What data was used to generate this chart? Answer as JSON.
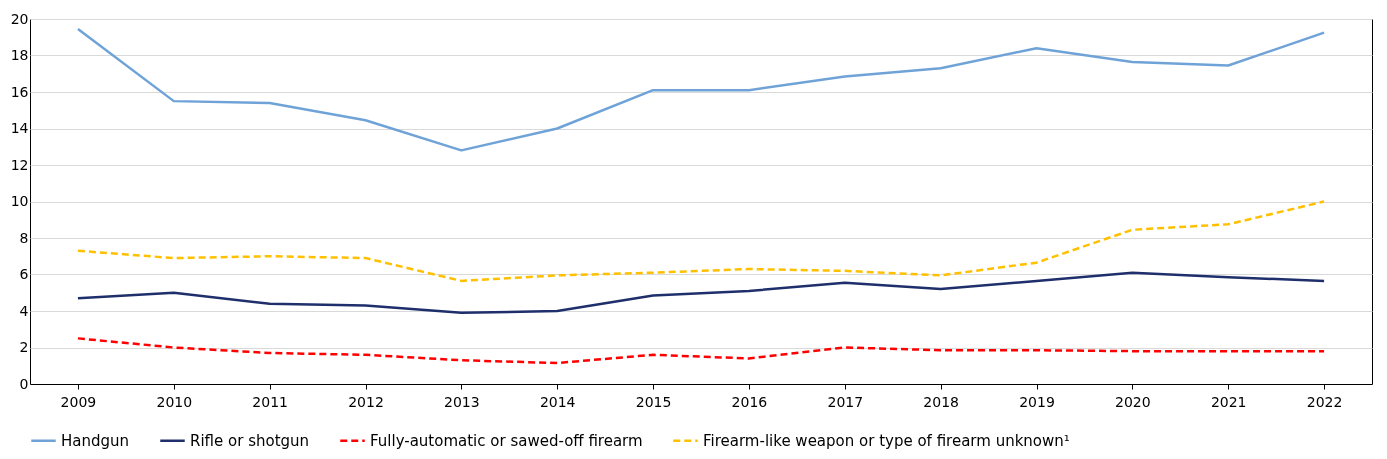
{
  "chart_data": {
    "type": "line",
    "categories": [
      "2009",
      "2010",
      "2011",
      "2012",
      "2013",
      "2014",
      "2015",
      "2016",
      "2017",
      "2018",
      "2019",
      "2020",
      "2021",
      "2022"
    ],
    "series": [
      {
        "name": "Handgun",
        "color": "#6fa3d8",
        "line_style": "solid",
        "values": [
          19.45,
          15.5,
          15.4,
          14.45,
          12.8,
          14.0,
          16.1,
          16.1,
          16.85,
          17.3,
          18.4,
          17.65,
          17.45,
          19.25
        ]
      },
      {
        "name": "Rifle or shotgun",
        "color": "#1f2f6b",
        "line_style": "solid",
        "values": [
          4.7,
          5.0,
          4.4,
          4.3,
          3.9,
          4.0,
          4.85,
          5.1,
          5.55,
          5.2,
          5.65,
          6.1,
          5.85,
          5.65
        ]
      },
      {
        "name": "Fully-automatic or sawed-off firearm",
        "color": "#ff0000",
        "line_style": "dashed",
        "values": [
          2.5,
          2.0,
          1.7,
          1.6,
          1.3,
          1.15,
          1.6,
          1.4,
          2.0,
          1.85,
          1.85,
          1.8,
          1.8,
          1.8
        ]
      },
      {
        "name": "Firearm-like weapon or type of firearm unknown¹",
        "color": "#ffc000",
        "line_style": "dashed",
        "values": [
          7.3,
          6.9,
          7.0,
          6.9,
          5.65,
          5.95,
          6.1,
          6.3,
          6.2,
          5.95,
          6.65,
          8.45,
          8.75,
          10.0
        ]
      }
    ],
    "ylim": [
      0,
      20
    ],
    "yticks": [
      0,
      2,
      4,
      6,
      8,
      10,
      12,
      14,
      16,
      18,
      20
    ],
    "grid": "y",
    "legend": "bottom",
    "marker": "none"
  }
}
